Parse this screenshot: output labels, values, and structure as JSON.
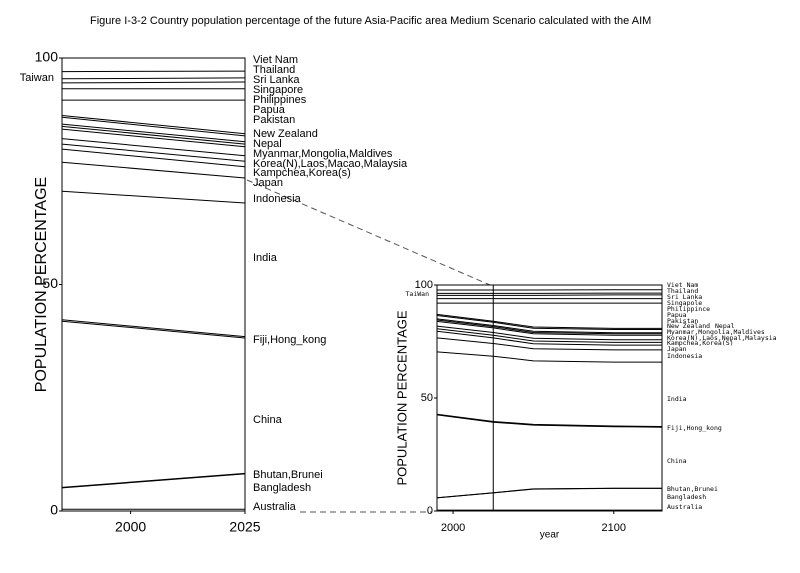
{
  "title": "Figure I-3-2   Country population percentage of the future  Asia-Pacific area Medium Scenario calculated with the AIM",
  "chart_data": [
    {
      "type": "stacked_line",
      "ylabel": "POPULATION PERCENTAGE",
      "color": "#000000",
      "x": [
        1985,
        2025
      ],
      "xlim": [
        1985,
        2025
      ],
      "xticks": [
        2000,
        2025
      ],
      "ylim": [
        0,
        100
      ],
      "yticks": [
        0,
        50,
        100
      ],
      "series": [
        {
          "name": "Australia",
          "values": [
            0.4,
            0.4
          ]
        },
        {
          "name": "Bangladesh",
          "values": [
            4.7,
            7.8
          ]
        },
        {
          "name": "Bhutan,Brunei",
          "values": [
            0.1,
            0.1
          ]
        },
        {
          "name": "China",
          "values": [
            36.7,
            29.9
          ]
        },
        {
          "name": "Fiji,Hong_kong",
          "values": [
            0.3,
            0.3
          ]
        },
        {
          "name": "India",
          "values": [
            28.4,
            29.5
          ]
        },
        {
          "name": "Indonesia",
          "values": [
            6.4,
            5.5
          ]
        },
        {
          "name": "Japan",
          "values": [
            2.9,
            2.5
          ]
        },
        {
          "name": "Kampchea,Korea(s)",
          "values": [
            1.1,
            1.2
          ]
        },
        {
          "name": "Korea(N),Laos,Macao,Malaysia",
          "values": [
            1.2,
            1.2
          ]
        },
        {
          "name": "Myanmar,Mongolia,Maldives",
          "values": [
            2.1,
            2.0
          ]
        },
        {
          "name": "Nepal",
          "values": [
            0.6,
            0.6
          ]
        },
        {
          "name": "New Zealand",
          "values": [
            0.5,
            0.5
          ]
        },
        {
          "name": "Pakistan",
          "values": [
            1.5,
            1.3
          ]
        },
        {
          "name": "Papua",
          "values": [
            0.4,
            0.5
          ]
        },
        {
          "name": "Philippines",
          "values": [
            3.4,
            7.4
          ]
        },
        {
          "name": "Singapore",
          "values": [
            2.5,
            2.5
          ]
        },
        {
          "name": "Sri Lanka",
          "values": [
            1.3,
            1.5
          ]
        },
        {
          "name": "Taiwan",
          "values": [
            0.9,
            0.9
          ]
        },
        {
          "name": "Thailand",
          "values": [
            1.6,
            1.5
          ]
        },
        {
          "name": "Viet Nam",
          "values": [
            3.0,
            2.9
          ]
        }
      ]
    },
    {
      "type": "stacked_line",
      "ylabel": "POPULATION PERCENTAGE",
      "xlabel": "year",
      "color": "#000000",
      "x": [
        1990,
        2025,
        2050,
        2100,
        2130
      ],
      "xlim": [
        1990,
        2130
      ],
      "xticks": [
        2000,
        2100
      ],
      "ylim": [
        0,
        100
      ],
      "yticks": [
        0,
        50,
        100
      ],
      "series": [
        {
          "name": "Australia",
          "values": [
            0.4,
            0.4,
            0.4,
            0.4,
            0.4
          ]
        },
        {
          "name": "Bangladesh",
          "values": [
            5.4,
            7.6,
            9.3,
            9.6,
            9.6
          ]
        },
        {
          "name": "Bhutan,Brunei",
          "values": [
            0.1,
            0.1,
            0.1,
            0.1,
            0.1
          ]
        },
        {
          "name": "China",
          "values": [
            36.6,
            31.2,
            28.2,
            27.2,
            27.0
          ]
        },
        {
          "name": "Fiji,Hong_kong",
          "values": [
            0.3,
            0.3,
            0.3,
            0.3,
            0.3
          ]
        },
        {
          "name": "India",
          "values": [
            27.6,
            28.9,
            28.1,
            28.3,
            28.5
          ]
        },
        {
          "name": "Indonesia",
          "values": [
            6.2,
            5.6,
            5.4,
            5.4,
            5.4
          ]
        },
        {
          "name": "Japan",
          "values": [
            2.9,
            2.5,
            2.2,
            2.1,
            2.1
          ]
        },
        {
          "name": "Kampchea,Korea(S)",
          "values": [
            1.1,
            1.2,
            1.2,
            1.2,
            1.2
          ]
        },
        {
          "name": "Korea(N),Laos,Nepal,Malaysia",
          "values": [
            1.2,
            1.2,
            1.2,
            1.2,
            1.2
          ]
        },
        {
          "name": "Myanmar,Mongolia,Maldives",
          "values": [
            2.1,
            2.0,
            2.0,
            2.0,
            2.0
          ]
        },
        {
          "name": "Nepal",
          "values": [
            0.6,
            0.6,
            0.6,
            0.6,
            0.6
          ]
        },
        {
          "name": "New Zealand",
          "values": [
            0.5,
            0.5,
            0.5,
            0.5,
            0.5
          ]
        },
        {
          "name": "Pakistan",
          "values": [
            1.5,
            1.4,
            1.4,
            1.4,
            1.4
          ]
        },
        {
          "name": "Papua",
          "values": [
            0.5,
            0.5,
            0.5,
            0.5,
            0.5
          ]
        },
        {
          "name": "Philippince",
          "values": [
            5.0,
            8.0,
            10.6,
            11.2,
            11.2
          ]
        },
        {
          "name": "Singapole",
          "values": [
            2.0,
            2.0,
            2.0,
            2.0,
            2.0
          ]
        },
        {
          "name": "Sri Lanka",
          "values": [
            1.4,
            1.4,
            1.4,
            1.6,
            1.6
          ]
        },
        {
          "name": "TaiWan",
          "values": [
            0.9,
            0.9,
            0.9,
            0.8,
            0.8
          ]
        },
        {
          "name": "Thailand",
          "values": [
            1.5,
            1.5,
            1.5,
            1.5,
            1.5
          ]
        },
        {
          "name": "Viet Nam",
          "values": [
            2.2,
            2.2,
            2.2,
            2.1,
            2.1
          ]
        }
      ]
    }
  ]
}
